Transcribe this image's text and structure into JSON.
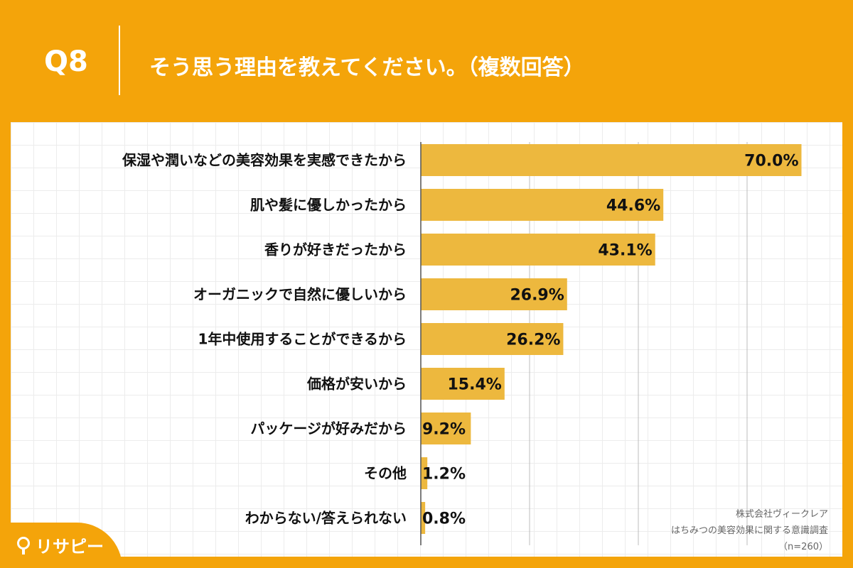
{
  "header": {
    "question_number": "Q8",
    "question_text": "そう思う理由を教えてください。（複数回答）"
  },
  "notes": {
    "company": "株式会社ヴィークレア",
    "survey": "はちみつの美容効果に関する意識調査",
    "sample": "（n=260）"
  },
  "logo": {
    "text": "リサピー",
    "icon": "pin-icon"
  },
  "colors": {
    "accent": "#F4A40A",
    "bar": "#EDB83E"
  },
  "chart_data": {
    "type": "bar",
    "orientation": "horizontal",
    "categories": [
      "保湿や潤いなどの美容効果を実感できたから",
      "肌や髪に優しかったから",
      "香りが好きだったから",
      "オーガニックで自然に優しいから",
      "1年中使用することができるから",
      "価格が安いから",
      "パッケージが好みだから",
      "その他",
      "わからない/答えられない"
    ],
    "values": [
      70.0,
      44.6,
      43.1,
      26.9,
      26.2,
      15.4,
      9.2,
      1.2,
      0.8
    ],
    "value_labels": [
      "70.0%",
      "44.6%",
      "43.1%",
      "26.9%",
      "26.2%",
      "15.4%",
      "9.2%",
      "1.2%",
      "0.8%"
    ],
    "xlim": [
      0,
      80
    ],
    "grid": true
  }
}
